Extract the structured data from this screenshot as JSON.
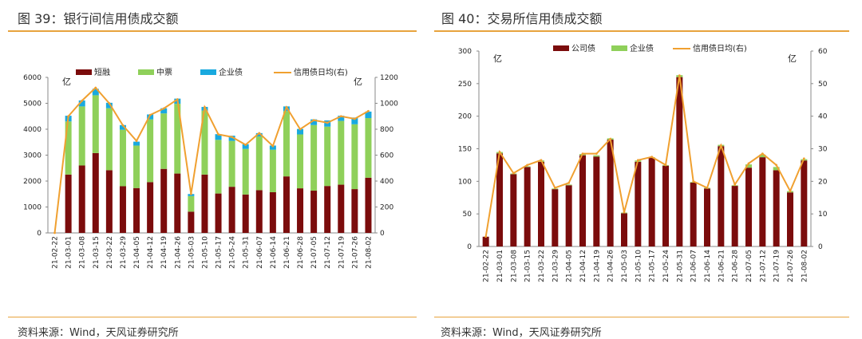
{
  "colors": {
    "dark_red": "#7b0c0c",
    "green": "#8fd05a",
    "cyan": "#19a9df",
    "orange": "#f0a030",
    "rule": "#e8a33d"
  },
  "chart_data": [
    {
      "type": "bar",
      "stacked": true,
      "title": "图 39：银行间信用债成交额",
      "source": "资料来源：Wind，天风证券研究所",
      "left_unit": "亿",
      "right_unit": "亿",
      "ylim_left": [
        0,
        6000
      ],
      "yticks_left": [
        0,
        1000,
        2000,
        3000,
        4000,
        5000,
        6000
      ],
      "ylim_right": [
        0,
        1200
      ],
      "yticks_right": [
        0,
        200,
        400,
        600,
        800,
        1000,
        1200
      ],
      "categories": [
        "21-02-22",
        "21-03-01",
        "21-03-08",
        "21-03-15",
        "21-03-22",
        "21-03-29",
        "21-04-05",
        "21-04-12",
        "21-04-19",
        "21-04-26",
        "21-05-03",
        "21-05-10",
        "21-05-17",
        "21-05-24",
        "21-05-31",
        "21-06-07",
        "21-06-14",
        "21-06-21",
        "21-06-28",
        "21-07-05",
        "21-07-12",
        "21-07-19",
        "21-07-26",
        "21-08-02"
      ],
      "series": [
        {
          "name": "短融",
          "axis": "left",
          "kind": "bar",
          "color": "#7b0c0c",
          "values": [
            0,
            2250,
            2600,
            3080,
            2420,
            1800,
            1730,
            1960,
            2470,
            2290,
            820,
            2250,
            1520,
            1780,
            1480,
            1650,
            1570,
            2180,
            1720,
            1630,
            1810,
            1860,
            1690,
            2130
          ]
        },
        {
          "name": "中票",
          "axis": "left",
          "kind": "bar",
          "color": "#8fd05a",
          "values": [
            0,
            2050,
            2280,
            2230,
            2390,
            2180,
            1640,
            2420,
            2140,
            2690,
            600,
            2470,
            2070,
            1770,
            1760,
            2070,
            1640,
            2520,
            2080,
            2530,
            2290,
            2460,
            2500,
            2300
          ]
        },
        {
          "name": "企业债",
          "axis": "left",
          "kind": "bar",
          "color": "#19a9df",
          "values": [
            0,
            220,
            230,
            250,
            210,
            180,
            150,
            190,
            200,
            200,
            80,
            140,
            220,
            200,
            180,
            130,
            160,
            180,
            210,
            220,
            240,
            200,
            260,
            250
          ]
        },
        {
          "name": "信用债日均(右)",
          "axis": "right",
          "kind": "line",
          "color": "#f0a030",
          "values": [
            0,
            900,
            1020,
            1120,
            1000,
            830,
            710,
            910,
            960,
            1030,
            300,
            970,
            760,
            740,
            680,
            770,
            670,
            970,
            800,
            870,
            850,
            900,
            880,
            940
          ]
        }
      ]
    },
    {
      "type": "bar",
      "title": "图 40：交易所信用债成交额",
      "source": "资料来源：Wind，天风证券研究所",
      "left_unit": "亿",
      "right_unit": "亿",
      "ylim_left": [
        0,
        300
      ],
      "yticks_left": [
        0,
        50,
        100,
        150,
        200,
        250,
        300
      ],
      "ylim_right": [
        0,
        60
      ],
      "yticks_right": [
        0,
        10,
        20,
        30,
        40,
        50,
        60
      ],
      "categories": [
        "21-02-22",
        "21-03-01",
        "21-03-08",
        "21-03-15",
        "21-03-22",
        "21-03-29",
        "21-04-05",
        "21-04-12",
        "21-04-19",
        "21-04-26",
        "21-05-03",
        "21-05-10",
        "21-05-17",
        "21-05-24",
        "21-05-31",
        "21-06-07",
        "21-06-14",
        "21-06-21",
        "21-06-28",
        "21-07-05",
        "21-07-12",
        "21-07-19",
        "21-07-26",
        "21-08-02"
      ],
      "series": [
        {
          "name": "公司债",
          "axis": "left",
          "kind": "bar",
          "color": "#7b0c0c",
          "values": [
            15,
            143,
            111,
            122,
            130,
            88,
            94,
            140,
            138,
            164,
            51,
            130,
            136,
            124,
            260,
            98,
            89,
            154,
            93,
            121,
            137,
            117,
            83,
            132
          ]
        },
        {
          "name": "企业债",
          "axis": "left",
          "kind": "bar",
          "color": "#8fd05a",
          "values": [
            0,
            2,
            1,
            1,
            2,
            1,
            1,
            2,
            2,
            2,
            1,
            2,
            1,
            1,
            3,
            1,
            1,
            2,
            1,
            5,
            4,
            5,
            2,
            2
          ]
        },
        {
          "name": "信用债日均(右)",
          "axis": "right",
          "kind": "line",
          "color": "#f0a030",
          "values": [
            3,
            29,
            22.5,
            25,
            26.5,
            18,
            19.5,
            28.5,
            28.5,
            33,
            10.5,
            26.5,
            27.5,
            25,
            52.5,
            20,
            18,
            31,
            19,
            25.5,
            28.5,
            25,
            17,
            27
          ]
        }
      ]
    }
  ]
}
